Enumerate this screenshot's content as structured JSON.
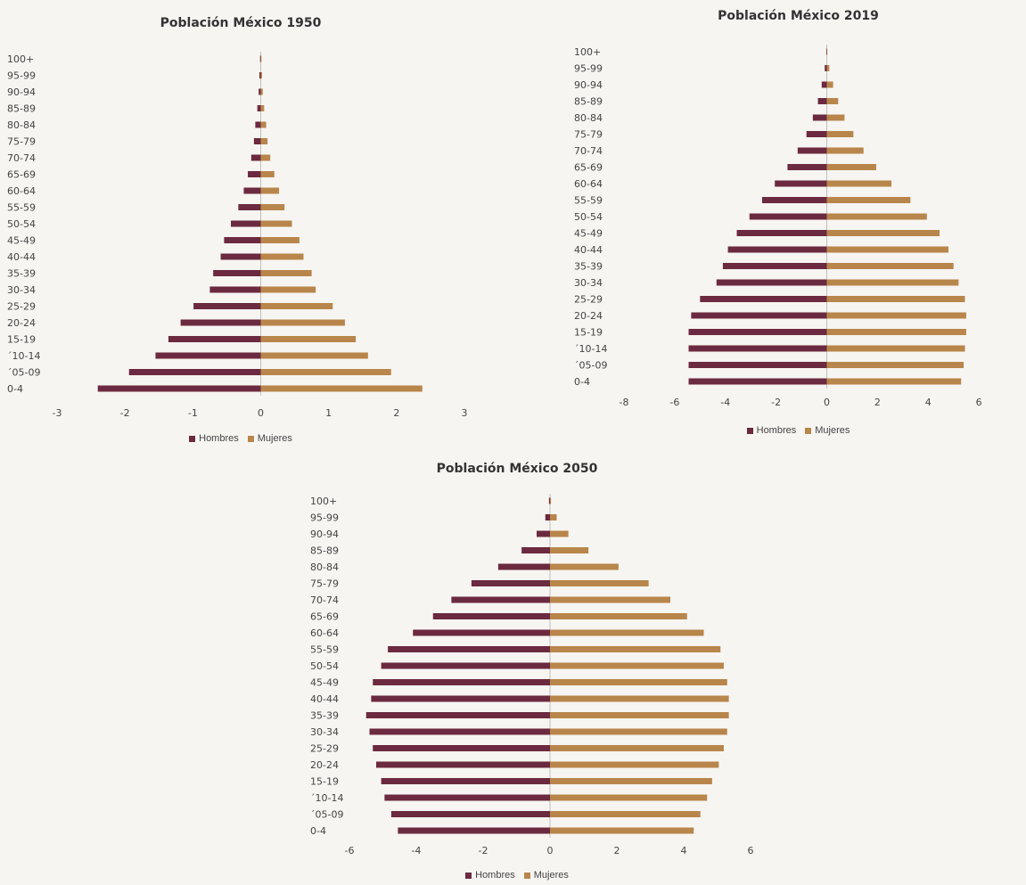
{
  "colors": {
    "hombres": "#6b2a40",
    "mujeres": "#b8864b"
  },
  "chart_data": [
    {
      "type": "bar",
      "orientation": "horizontal",
      "title": "Población México 1950",
      "categories": [
        "100+",
        "95-99",
        "90-94",
        "85-89",
        "80-84",
        "75-79",
        "70-74",
        "65-69",
        "60-64",
        "55-59",
        "50-54",
        "45-49",
        "40-44",
        "35-39",
        "30-34",
        "25-29",
        "20-24",
        "15-19",
        "´10-14",
        "´05-09",
        "0-4"
      ],
      "series": [
        {
          "name": "Hombres",
          "values": [
            -0.01,
            -0.02,
            -0.03,
            -0.05,
            -0.08,
            -0.1,
            -0.14,
            -0.19,
            -0.25,
            -0.33,
            -0.44,
            -0.54,
            -0.59,
            -0.7,
            -0.75,
            -0.99,
            -1.18,
            -1.36,
            -1.55,
            -1.94,
            -2.4
          ]
        },
        {
          "name": "Mujeres",
          "values": [
            0.01,
            0.02,
            0.03,
            0.05,
            0.08,
            0.1,
            0.14,
            0.2,
            0.27,
            0.35,
            0.46,
            0.57,
            0.63,
            0.75,
            0.81,
            1.06,
            1.24,
            1.4,
            1.58,
            1.92,
            2.38
          ]
        }
      ],
      "xlim": [
        -3,
        3
      ],
      "xticks": [
        "-3",
        "-2",
        "-1",
        "0",
        "1",
        "2",
        "3"
      ],
      "legend": [
        "Hombres",
        "Mujeres"
      ],
      "legend_position": "bottom"
    },
    {
      "type": "bar",
      "orientation": "horizontal",
      "title": "Población México 2019",
      "categories": [
        "100+",
        "95-99",
        "90-94",
        "85-89",
        "80-84",
        "75-79",
        "70-74",
        "65-69",
        "60-64",
        "55-59",
        "50-54",
        "45-49",
        "40-44",
        "35-39",
        "30-34",
        "25-29",
        "20-24",
        "15-19",
        "´10-14",
        "´05-09",
        "0-4"
      ],
      "series": [
        {
          "name": "Hombres",
          "values": [
            -0.02,
            -0.08,
            -0.2,
            -0.35,
            -0.55,
            -0.8,
            -1.15,
            -1.55,
            -2.05,
            -2.55,
            -3.05,
            -3.55,
            -3.9,
            -4.1,
            -4.35,
            -5.0,
            -5.35,
            -5.45,
            -5.45,
            -5.45,
            -5.45
          ]
        },
        {
          "name": "Mujeres",
          "values": [
            0.02,
            0.1,
            0.25,
            0.45,
            0.7,
            1.05,
            1.45,
            1.95,
            2.55,
            3.3,
            3.95,
            4.45,
            4.8,
            5.0,
            5.2,
            5.45,
            5.5,
            5.5,
            5.45,
            5.4,
            5.3
          ]
        }
      ],
      "xlim": [
        -8,
        8
      ],
      "xticks": [
        "-8",
        "-6",
        "-4",
        "-2",
        "0",
        "2",
        "4",
        "6",
        "8"
      ],
      "legend": [
        "Hombres",
        "Mujeres"
      ],
      "legend_position": "bottom"
    },
    {
      "type": "bar",
      "orientation": "horizontal",
      "title": "Población México 2050",
      "categories": [
        "100+",
        "95-99",
        "90-94",
        "85-89",
        "80-84",
        "75-79",
        "70-74",
        "65-69",
        "60-64",
        "55-59",
        "50-54",
        "45-49",
        "40-44",
        "35-39",
        "30-34",
        "25-29",
        "20-24",
        "15-19",
        "´10-14",
        "´05-09",
        "0-4"
      ],
      "series": [
        {
          "name": "Hombres",
          "values": [
            -0.03,
            -0.14,
            -0.4,
            -0.85,
            -1.55,
            -2.35,
            -2.95,
            -3.5,
            -4.1,
            -4.85,
            -5.05,
            -5.3,
            -5.35,
            -5.5,
            -5.4,
            -5.3,
            -5.2,
            -5.05,
            -4.95,
            -4.75,
            -4.55
          ]
        },
        {
          "name": "Mujeres",
          "values": [
            0.03,
            0.2,
            0.55,
            1.15,
            2.05,
            2.95,
            3.6,
            4.1,
            4.6,
            5.1,
            5.2,
            5.3,
            5.35,
            5.35,
            5.3,
            5.2,
            5.05,
            4.85,
            4.7,
            4.5,
            4.3
          ]
        }
      ],
      "xlim": [
        -6,
        6
      ],
      "xticks": [
        "-6",
        "-4",
        "-2",
        "0",
        "2",
        "4",
        "6"
      ],
      "legend": [
        "Hombres",
        "Mujeres"
      ],
      "legend_position": "bottom"
    }
  ]
}
